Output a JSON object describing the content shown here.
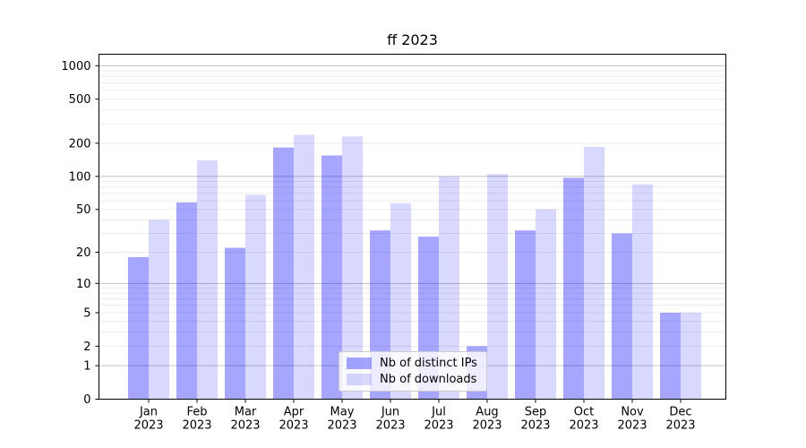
{
  "title": "ff 2023",
  "colors": {
    "bar_distinct_ips": "rgba(0,0,255,0.35)",
    "bar_downloads": "rgba(0,0,255,0.15)",
    "bar_distinct_ips_hex": "#a6a6ff",
    "bar_downloads_hex": "#d9d9ff",
    "grid_major": "#c3c3c3",
    "grid_minor": "#ececec",
    "axis": "#000000",
    "legend_border": "#cccccc"
  },
  "chart_data": {
    "type": "bar",
    "title": "ff 2023",
    "categories": [
      "Jan 2023",
      "Feb 2023",
      "Mar 2023",
      "Apr 2023",
      "May 2023",
      "Jun 2023",
      "Jul 2023",
      "Aug 2023",
      "Sep 2023",
      "Oct 2023",
      "Nov 2023",
      "Dec 2023"
    ],
    "series": [
      {
        "name": "Nb of distinct IPs",
        "values": [
          18,
          58,
          22,
          183,
          155,
          32,
          28,
          2,
          32,
          97,
          30,
          5
        ]
      },
      {
        "name": "Nb of downloads",
        "values": [
          40,
          140,
          68,
          238,
          230,
          57,
          100,
          105,
          50,
          185,
          85,
          5
        ]
      }
    ],
    "xlabel": "",
    "ylabel": "",
    "yscale": "log1p",
    "ylim": [
      0,
      1270
    ],
    "yticks": [
      0,
      1,
      2,
      5,
      10,
      20,
      50,
      100,
      200,
      500,
      1000
    ],
    "grid": "horizontal, major (powers of 10) darker + log minors lighter",
    "legend_position": "inside, lower center"
  }
}
